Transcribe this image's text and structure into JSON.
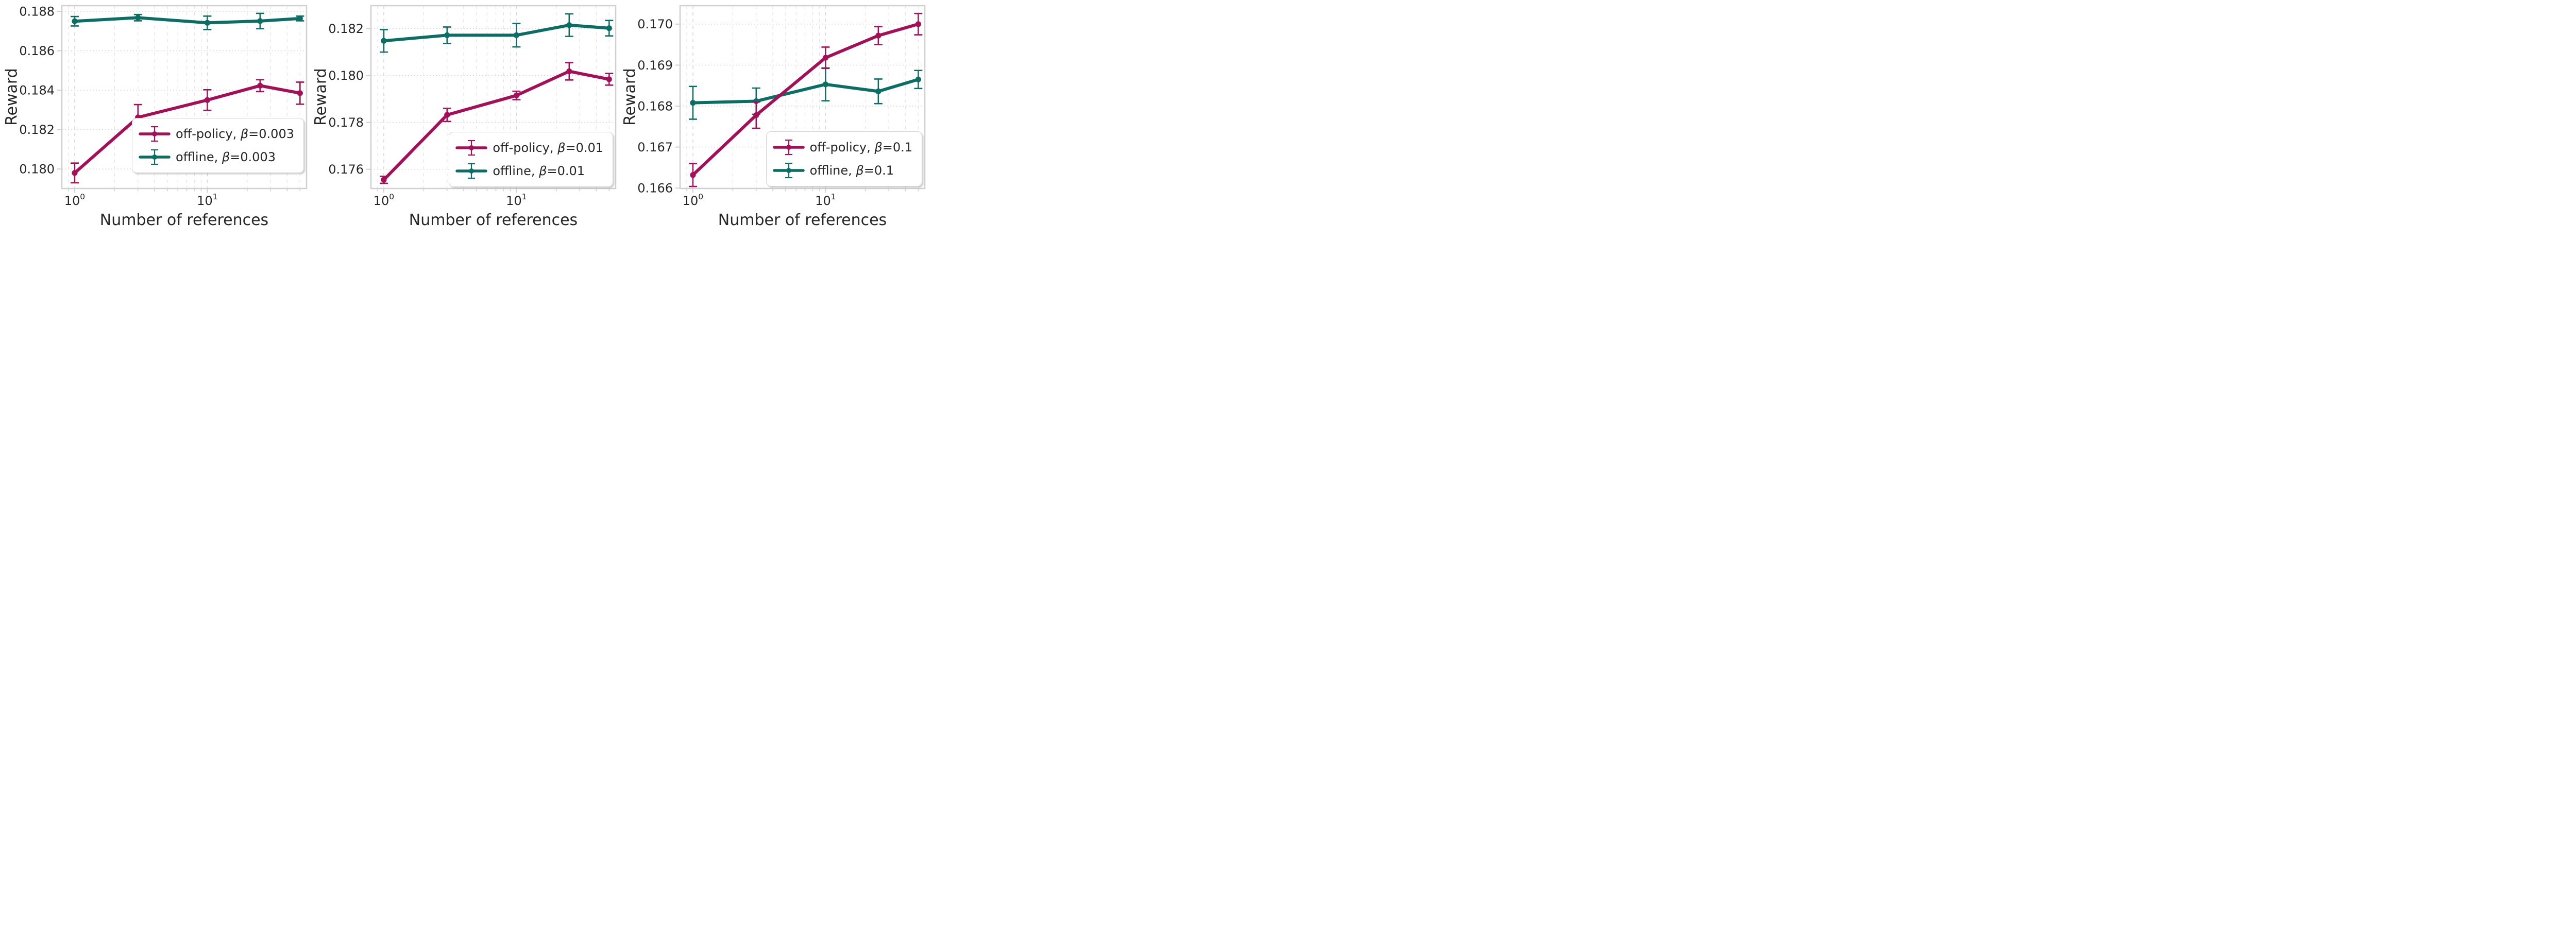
{
  "figure": {
    "background": "#ffffff",
    "text_color": "#262626",
    "grid_major_color": "#d6d6d6",
    "grid_minor_color": "#e3e3e3",
    "spine_color": "#d0d0d0",
    "offpolicy_color": "#a40f57",
    "offline_color": "#0b6e64"
  },
  "chart_data": [
    {
      "type": "line",
      "title": "",
      "xlabel": "Number of references",
      "ylabel": "Reward",
      "x_scale": "log",
      "xlim": [
        0.8,
        56
      ],
      "ylim": [
        0.17901,
        0.18829
      ],
      "grid": true,
      "legend_loc": "lower right",
      "x": [
        1,
        3,
        10,
        25,
        50
      ],
      "x_major_ticks": [
        {
          "value": 1,
          "base": "10",
          "exp": "0"
        },
        {
          "value": 10,
          "base": "10",
          "exp": "1"
        }
      ],
      "x_minor_ticks": [
        0.9,
        2,
        3,
        4,
        5,
        6,
        7,
        8,
        9,
        20,
        30,
        40,
        50
      ],
      "yticks": [
        {
          "value": 0.188,
          "label": "0.188"
        },
        {
          "value": 0.186,
          "label": "0.186"
        },
        {
          "value": 0.184,
          "label": "0.184"
        },
        {
          "value": 0.182,
          "label": "0.182"
        },
        {
          "value": 0.18,
          "label": "0.180"
        }
      ],
      "series": [
        {
          "id": "off-policy",
          "name_prefix": "off-policy, ",
          "beta_symbol": "β",
          "beta_eq": "=0.003",
          "color": "#a40f57",
          "values": [
            0.1798,
            0.18262,
            0.1835,
            0.18423,
            0.18385
          ],
          "errors": [
            0.0005,
            0.00065,
            0.00052,
            0.0003,
            0.00056
          ]
        },
        {
          "id": "offline",
          "name_prefix": "offline, ",
          "beta_symbol": "β",
          "beta_eq": "=0.003",
          "color": "#0b6e64",
          "values": [
            0.1875,
            0.18768,
            0.18742,
            0.18751,
            0.18764
          ],
          "errors": [
            0.00024,
            0.00016,
            0.00034,
            0.00039,
            0.00012
          ]
        }
      ]
    },
    {
      "type": "line",
      "title": "",
      "xlabel": "Number of references",
      "ylabel": "Reward",
      "x_scale": "log",
      "xlim": [
        0.8,
        56
      ],
      "ylim": [
        0.17518,
        0.18298
      ],
      "grid": true,
      "legend_loc": "lower right",
      "x": [
        1,
        3,
        10,
        25,
        50
      ],
      "x_major_ticks": [
        {
          "value": 1,
          "base": "10",
          "exp": "0"
        },
        {
          "value": 10,
          "base": "10",
          "exp": "1"
        }
      ],
      "x_minor_ticks": [
        0.9,
        2,
        3,
        4,
        5,
        6,
        7,
        8,
        9,
        20,
        30,
        40,
        50
      ],
      "yticks": [
        {
          "value": 0.182,
          "label": "0.182"
        },
        {
          "value": 0.18,
          "label": "0.180"
        },
        {
          "value": 0.178,
          "label": "0.178"
        },
        {
          "value": 0.176,
          "label": "0.176"
        }
      ],
      "series": [
        {
          "id": "off-policy",
          "name_prefix": "off-policy, ",
          "beta_symbol": "β",
          "beta_eq": "=0.01",
          "color": "#a40f57",
          "values": [
            0.17555,
            0.17832,
            0.17915,
            0.18018,
            0.17984
          ],
          "errors": [
            0.00015,
            0.00028,
            0.00018,
            0.00037,
            0.00025
          ]
        },
        {
          "id": "offline",
          "name_prefix": "offline, ",
          "beta_symbol": "β",
          "beta_eq": "=0.01",
          "color": "#0b6e64",
          "values": [
            0.18148,
            0.18172,
            0.18172,
            0.18215,
            0.18202
          ],
          "errors": [
            0.00048,
            0.00035,
            0.0005,
            0.00048,
            0.00033
          ]
        }
      ]
    },
    {
      "type": "line",
      "title": "",
      "xlabel": "Number of references",
      "ylabel": "Reward",
      "x_scale": "log",
      "xlim": [
        0.8,
        56
      ],
      "ylim": [
        0.16599,
        0.17045
      ],
      "grid": true,
      "legend_loc": "lower right",
      "x": [
        1,
        3,
        10,
        25,
        50
      ],
      "x_major_ticks": [
        {
          "value": 1,
          "base": "10",
          "exp": "0"
        },
        {
          "value": 10,
          "base": "10",
          "exp": "1"
        }
      ],
      "x_minor_ticks": [
        0.9,
        2,
        3,
        4,
        5,
        6,
        7,
        8,
        9,
        20,
        30,
        40,
        50
      ],
      "yticks": [
        {
          "value": 0.17,
          "label": "0.170"
        },
        {
          "value": 0.169,
          "label": "0.169"
        },
        {
          "value": 0.168,
          "label": "0.168"
        },
        {
          "value": 0.167,
          "label": "0.167"
        },
        {
          "value": 0.166,
          "label": "0.166"
        }
      ],
      "series": [
        {
          "id": "off-policy",
          "name_prefix": "off-policy, ",
          "beta_symbol": "β",
          "beta_eq": "=0.1",
          "color": "#a40f57",
          "values": [
            0.16632,
            0.16778,
            0.16918,
            0.16972,
            0.17
          ],
          "errors": [
            0.00028,
            0.00032,
            0.00026,
            0.00022,
            0.00026
          ]
        },
        {
          "id": "offline",
          "name_prefix": "offline, ",
          "beta_symbol": "β",
          "beta_eq": "=0.1",
          "color": "#0b6e64",
          "values": [
            0.16808,
            0.16812,
            0.16853,
            0.16836,
            0.16865
          ],
          "errors": [
            0.0004,
            0.00032,
            0.0004,
            0.0003,
            0.00022
          ]
        }
      ]
    }
  ]
}
